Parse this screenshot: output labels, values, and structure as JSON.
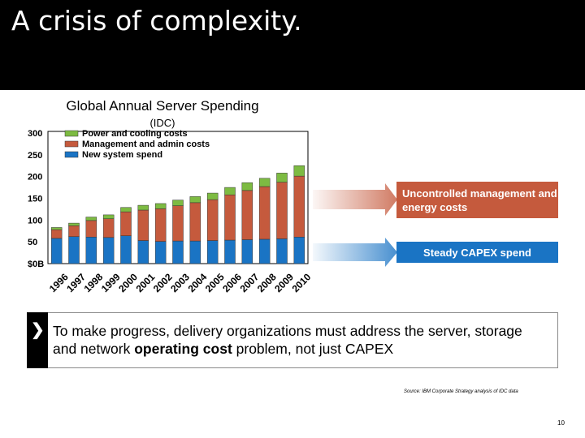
{
  "slide": {
    "title": "A crisis of complexity.",
    "page_number": "10",
    "source": "Source: IBM Corporate Strategy analysis of IDC data"
  },
  "message": {
    "part1": "To make progress, delivery organizations must address the server, storage and network ",
    "bold": "operating cost",
    "part2": " problem, not just CAPEX"
  },
  "callouts": {
    "top": "Uncontrolled management and energy costs",
    "bottom": "Steady CAPEX spend"
  },
  "colors": {
    "power": "#7dbb42",
    "management": "#c55a3d",
    "new_system": "#1a74c4",
    "title_bar": "#000000"
  },
  "chart_data": {
    "type": "bar",
    "stacked": true,
    "title": "Global Annual Server Spending",
    "subtitle": "(IDC)",
    "categories": [
      "1996",
      "1997",
      "1998",
      "1999",
      "2000",
      "2001",
      "2002",
      "2003",
      "2004",
      "2005",
      "2006",
      "2007",
      "2008",
      "2009",
      "2010"
    ],
    "series": [
      {
        "name": "Power and cooling costs",
        "values": [
          5,
          6,
          8,
          9,
          10,
          11,
          12,
          13,
          14,
          15,
          17,
          18,
          19,
          21,
          24
        ]
      },
      {
        "name": "Management and admin costs",
        "values": [
          20,
          25,
          38,
          43,
          55,
          70,
          75,
          81,
          88,
          94,
          104,
          113,
          121,
          130,
          140
        ]
      },
      {
        "name": "New system spend",
        "values": [
          58,
          62,
          61,
          60,
          64,
          53,
          51,
          52,
          52,
          53,
          54,
          55,
          56,
          57,
          61
        ]
      }
    ],
    "yticks": [
      "$0B",
      "50",
      "100",
      "150",
      "200",
      "250",
      "300"
    ],
    "ylim": [
      0,
      300
    ]
  }
}
